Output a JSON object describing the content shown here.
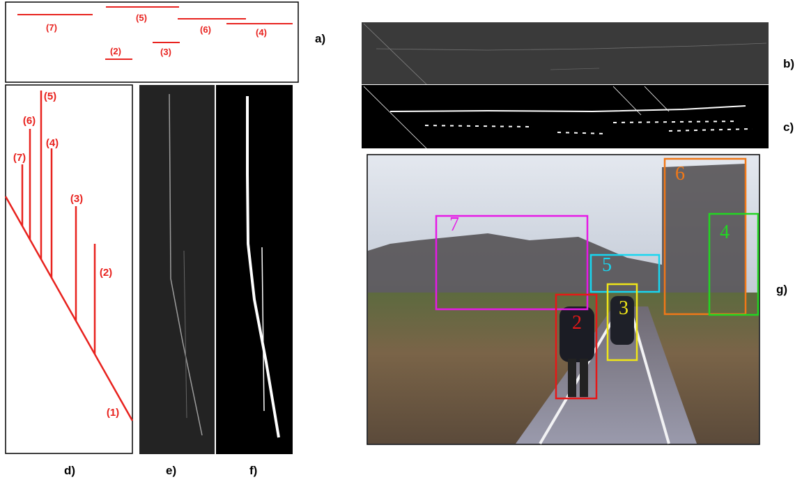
{
  "panel_labels": [
    "a)",
    "b)",
    "c)",
    "d)",
    "e)",
    "f)",
    "g)"
  ],
  "panel_a_segments": [
    "(7)",
    "(5)",
    "(6)",
    "(4)",
    "(2)",
    "(3)"
  ],
  "panel_d_branches": [
    "(1)",
    "(2)",
    "(3)",
    "(4)",
    "(5)",
    "(6)",
    "(7)"
  ],
  "panel_g_boxes": [
    "7",
    "5",
    "3",
    "2",
    "6",
    "4"
  ]
}
